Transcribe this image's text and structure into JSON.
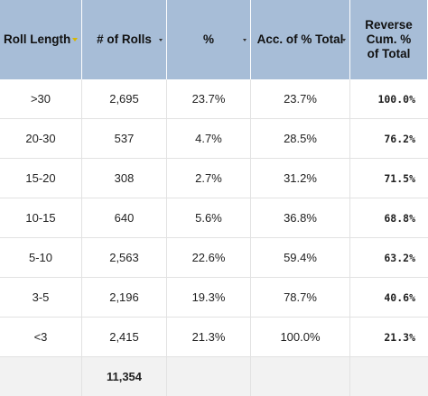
{
  "table": {
    "headers": [
      {
        "label": "Roll Length",
        "caret": "filtered"
      },
      {
        "label": "# of Rolls",
        "caret": "normal"
      },
      {
        "label": "%",
        "caret": "normal"
      },
      {
        "label": "Acc. of % Total",
        "caret": "normal"
      },
      {
        "label": "Reverse Cum. % of Total",
        "caret": "none"
      }
    ],
    "rows": [
      [
        ">30",
        "2,695",
        "23.7%",
        "23.7%",
        "100.0%"
      ],
      [
        "20-30",
        "537",
        "4.7%",
        "28.5%",
        "76.2%"
      ],
      [
        "15-20",
        "308",
        "2.7%",
        "31.2%",
        "71.5%"
      ],
      [
        "10-15",
        "640",
        "5.6%",
        "36.8%",
        "68.8%"
      ],
      [
        "5-10",
        "2,563",
        "22.6%",
        "59.4%",
        "63.2%"
      ],
      [
        "3-5",
        "2,196",
        "19.3%",
        "78.7%",
        "40.6%"
      ],
      [
        "<3",
        "2,415",
        "21.3%",
        "100.0%",
        "21.3%"
      ]
    ],
    "footer": [
      "",
      "11,354",
      "",
      "",
      ""
    ]
  },
  "colors": {
    "header_bg": "#a7bdd7",
    "footer_bg": "#f2f2f2",
    "filter_caret": "#d7b700"
  }
}
